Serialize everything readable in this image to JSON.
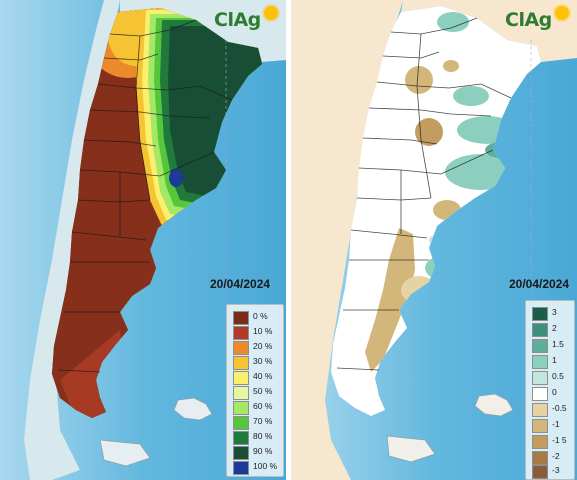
{
  "panels": [
    {
      "id": "left",
      "logo_text": "ClAg",
      "date": "20/04/2024",
      "legend": [
        {
          "label": "0 %",
          "color": "#7b2b18"
        },
        {
          "label": "10 %",
          "color": "#b03a26"
        },
        {
          "label": "20 %",
          "color": "#ec8a2b"
        },
        {
          "label": "30 %",
          "color": "#f6c332"
        },
        {
          "label": "40 %",
          "color": "#fbf06e"
        },
        {
          "label": "50 %",
          "color": "#e7f6a0"
        },
        {
          "label": "60 %",
          "color": "#a5e866"
        },
        {
          "label": "70 %",
          "color": "#56c73c"
        },
        {
          "label": "80 %",
          "color": "#1f7a3c"
        },
        {
          "label": "90 %",
          "color": "#174e35"
        },
        {
          "label": "100 %",
          "color": "#1d3a9b"
        }
      ]
    },
    {
      "id": "right",
      "logo_text": "ClAg",
      "date": "20/04/2024",
      "legend": [
        {
          "label": "3",
          "color": "#1b5c4b"
        },
        {
          "label": "2",
          "color": "#3c8f7b"
        },
        {
          "label": "1.5",
          "color": "#5fae9c"
        },
        {
          "label": "1",
          "color": "#8ccfbe"
        },
        {
          "label": "0.5",
          "color": "#bfe7de"
        },
        {
          "label": "0",
          "color": "#ffffff"
        },
        {
          "label": "-0.5",
          "color": "#e6d3a4"
        },
        {
          "label": "-1",
          "color": "#d3b679"
        },
        {
          "label": "-1 5",
          "color": "#c39d5f"
        },
        {
          "label": "-2",
          "color": "#a87a47"
        },
        {
          "label": "-3",
          "color": "#8a5c3b"
        }
      ]
    }
  ]
}
